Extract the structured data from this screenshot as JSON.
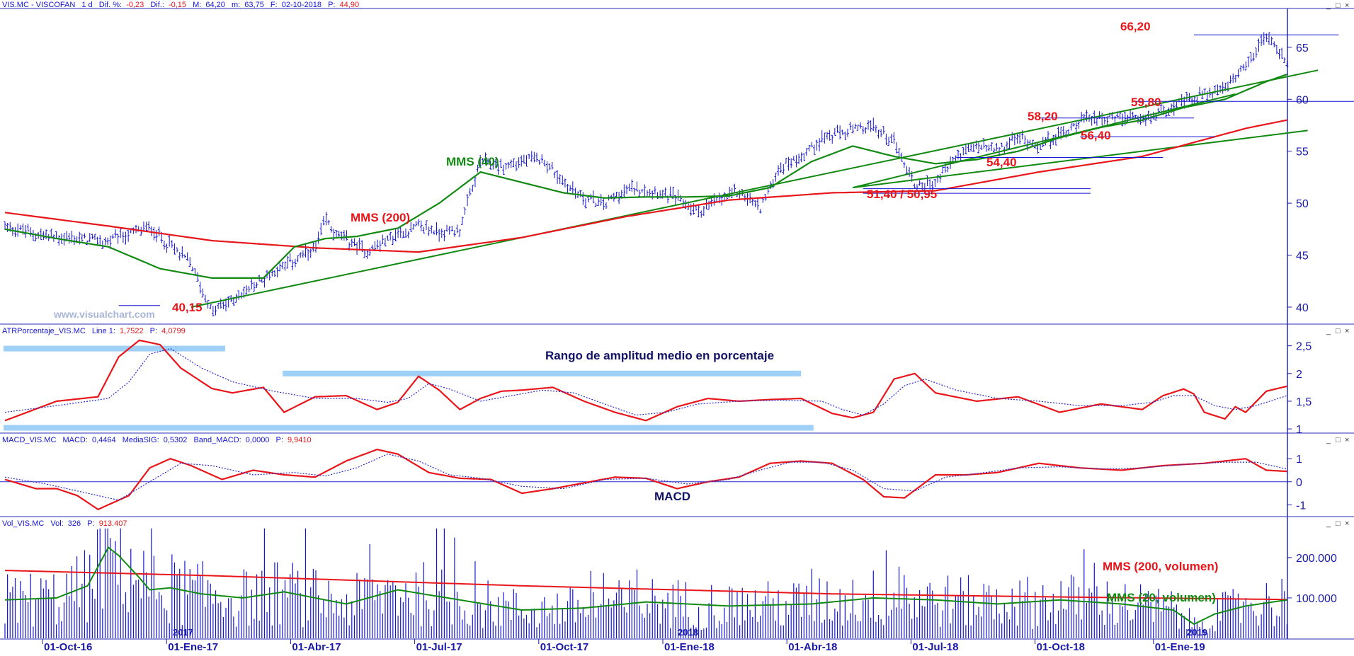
{
  "chart_data": [
    {
      "type": "ohlc",
      "panel": "price",
      "header": {
        "symbol": "VIS.MC - VISCOFAN",
        "period": "1 d",
        "dif_pct_label": "Dif. %:",
        "dif_pct": "-0,23",
        "dif_label": "Dif.:",
        "dif": "-0,15",
        "max_label": "M:",
        "max": "64,20",
        "min_label": "m:",
        "min": "63,75",
        "date_label": "F:",
        "date": "02-10-2018",
        "p_label": "P:",
        "p": "44,90"
      },
      "ylim": [
        38.5,
        68.6
      ],
      "y_ticks": [
        "40",
        "45",
        "50",
        "55",
        "60",
        "65"
      ],
      "y_tick_values": [
        40,
        45,
        50,
        55,
        60,
        65
      ],
      "price_series": {
        "name": "VIS.MC",
        "color": "#1515d4",
        "anchors_t": [
          0,
          4,
          10,
          14,
          18,
          20,
          22,
          24,
          26,
          28,
          30,
          31,
          32,
          35,
          38,
          40,
          42,
          44,
          46,
          48,
          50,
          52,
          54,
          56,
          58,
          59,
          61,
          63,
          65,
          67,
          69,
          71,
          73,
          75,
          77,
          79,
          81,
          84,
          86,
          88,
          90,
          92,
          94,
          96,
          98,
          100,
          102,
          104,
          106,
          108,
          110,
          112,
          114,
          116,
          118,
          120,
          122,
          124
        ],
        "anchors_v": [
          47.8,
          46.8,
          46.3,
          47.7,
          44.2,
          39.5,
          40.7,
          42.0,
          43.5,
          44.5,
          45.5,
          48.5,
          47.0,
          45.4,
          47.0,
          47.8,
          47.2,
          47.5,
          54.0,
          53.5,
          54.0,
          54.3,
          52.0,
          50.5,
          49.9,
          50.8,
          51.5,
          51.2,
          50.5,
          49.2,
          50.3,
          51.2,
          49.5,
          53.5,
          54.5,
          56.2,
          56.8,
          57.3,
          56.0,
          51.7,
          52.0,
          54.5,
          55.5,
          55.0,
          56.3,
          55.6,
          56.5,
          58.0,
          58.3,
          58.2,
          57.9,
          59.0,
          59.7,
          60.5,
          61.0,
          63.0,
          66.2,
          63.5
        ],
        "bar_count": 500
      },
      "moving_averages": [
        {
          "name": "MMS (200)",
          "color": "#e8161b",
          "t": [
            0,
            10,
            20,
            30,
            40,
            50,
            60,
            70,
            80,
            90,
            100,
            110,
            120,
            124
          ],
          "v": [
            49.1,
            47.8,
            46.4,
            45.7,
            45.3,
            46.7,
            48.7,
            50.3,
            51.0,
            51.2,
            53.0,
            54.5,
            57.2,
            58.0
          ]
        },
        {
          "name": "MMS (40)",
          "color": "#128a12",
          "t": [
            0,
            5,
            10,
            15,
            20,
            25,
            28,
            31,
            34,
            38,
            42,
            46,
            50,
            54,
            58,
            62,
            66,
            70,
            74,
            78,
            82,
            86,
            90,
            94,
            98,
            102,
            106,
            110,
            114,
            118,
            122,
            124
          ],
          "v": [
            47.5,
            46.6,
            45.8,
            43.7,
            42.8,
            42.8,
            45.8,
            46.6,
            46.8,
            47.6,
            50.0,
            53.0,
            52.0,
            51.0,
            50.5,
            50.6,
            50.6,
            50.7,
            51.5,
            54.0,
            55.5,
            54.5,
            53.8,
            54.2,
            55.0,
            56.3,
            57.3,
            58.0,
            59.2,
            60.0,
            61.7,
            62.4
          ]
        }
      ],
      "trendlines_green": [
        {
          "t": [
            18,
            127
          ],
          "v": [
            40.0,
            62.8
          ]
        },
        {
          "t": [
            82,
            126
          ],
          "v": [
            51.5,
            57.0
          ]
        },
        {
          "t": [
            82,
            119
          ],
          "v": [
            51.5,
            60.5
          ]
        }
      ],
      "level_lines": [
        {
          "t": [
            11,
            15
          ],
          "v": 40.15
        },
        {
          "t": [
            115,
            129
          ],
          "v": 66.2
        },
        {
          "t": [
            109,
            136
          ],
          "v": 59.8
        },
        {
          "t": [
            100,
            115
          ],
          "v": 58.2
        },
        {
          "t": [
            104,
            117
          ],
          "v": 56.4
        },
        {
          "t": [
            92,
            112
          ],
          "v": 54.4
        },
        {
          "t": [
            83,
            105
          ],
          "v": 51.4
        },
        {
          "t": [
            83,
            105
          ],
          "v": 50.95
        }
      ],
      "annotations": [
        {
          "text": "MMS (40)",
          "color": "green"
        },
        {
          "text": "MMS (200)",
          "color": "red"
        },
        {
          "text": "66,20",
          "color": "red"
        },
        {
          "text": "59,80",
          "color": "red"
        },
        {
          "text": "58,20",
          "color": "red"
        },
        {
          "text": "56,40",
          "color": "red"
        },
        {
          "text": "54,40",
          "color": "red"
        },
        {
          "text": "51,40 / 50,95",
          "color": "red"
        },
        {
          "text": "40,15",
          "color": "red"
        }
      ],
      "watermark": "www.visualchart.com"
    },
    {
      "type": "line",
      "panel": "atr",
      "header": {
        "name": "ATRPorcentaje_VIS.MC",
        "line_label": "Line 1:",
        "line_value": "1,7522",
        "p_label": "P:",
        "p": "4,0799"
      },
      "ylim": [
        0.95,
        2.7
      ],
      "y_ticks": [
        "1",
        "1,5",
        "2",
        "2,5"
      ],
      "y_tick_values": [
        1.0,
        1.5,
        2.0,
        2.5
      ],
      "title": "Rango de amplitud medio en porcentaje",
      "series": [
        {
          "name": "Line 1",
          "color": "#e8161b",
          "t": [
            0,
            5,
            9,
            11,
            13,
            15,
            17,
            20,
            22,
            25,
            27,
            30,
            33,
            36,
            38,
            40,
            42,
            44,
            46,
            48,
            50,
            53,
            56,
            59,
            62,
            65,
            68,
            71,
            74,
            77,
            80,
            82,
            84,
            86,
            88,
            90,
            94,
            98,
            102,
            106,
            110,
            112,
            114,
            115,
            116,
            118,
            119,
            120,
            122,
            124
          ],
          "v": [
            1.15,
            1.5,
            1.58,
            2.3,
            2.6,
            2.52,
            2.1,
            1.73,
            1.65,
            1.75,
            1.3,
            1.58,
            1.6,
            1.35,
            1.48,
            1.95,
            1.7,
            1.35,
            1.55,
            1.68,
            1.7,
            1.75,
            1.5,
            1.3,
            1.15,
            1.4,
            1.55,
            1.5,
            1.53,
            1.55,
            1.28,
            1.2,
            1.3,
            1.9,
            2.0,
            1.65,
            1.5,
            1.58,
            1.3,
            1.45,
            1.35,
            1.6,
            1.72,
            1.63,
            1.3,
            1.18,
            1.4,
            1.3,
            1.68,
            1.77
          ]
        },
        {
          "name": "Signal",
          "color": "#2a2ad0",
          "style": "dotted",
          "t": [
            0,
            5,
            10,
            12,
            14,
            16,
            19,
            22,
            26,
            30,
            34,
            37,
            39,
            41,
            43,
            46,
            49,
            52,
            55,
            58,
            61,
            64,
            67,
            71,
            75,
            79,
            81,
            83,
            85,
            87,
            89,
            92,
            96,
            100,
            104,
            108,
            111,
            113,
            115,
            117,
            119,
            121,
            124
          ],
          "v": [
            1.3,
            1.42,
            1.55,
            1.85,
            2.35,
            2.45,
            2.1,
            1.85,
            1.68,
            1.55,
            1.55,
            1.48,
            1.55,
            1.82,
            1.72,
            1.5,
            1.6,
            1.7,
            1.65,
            1.45,
            1.25,
            1.3,
            1.45,
            1.5,
            1.52,
            1.5,
            1.35,
            1.25,
            1.45,
            1.78,
            1.9,
            1.7,
            1.55,
            1.5,
            1.42,
            1.42,
            1.48,
            1.6,
            1.6,
            1.42,
            1.35,
            1.42,
            1.6
          ]
        }
      ],
      "highlight_bars_color": "#9fd0f7"
    },
    {
      "type": "line",
      "panel": "macd",
      "header": {
        "name": "MACD_VIS.MC",
        "macd_label": "MACD:",
        "macd": "0,4464",
        "sig_label": "MediaSIG:",
        "sig": "0,5302",
        "band_label": "Band_MACD:",
        "band": "0,0000",
        "p_label": "P:",
        "p": "9,9410"
      },
      "ylim": [
        -1.45,
        1.65
      ],
      "y_ticks": [
        "-1",
        "0",
        "1"
      ],
      "y_tick_values": [
        -1,
        0,
        1
      ],
      "label": "MACD",
      "zero_line": 0,
      "series": [
        {
          "name": "MACD",
          "color": "#e8161b",
          "t": [
            0,
            3,
            5,
            7,
            9,
            12,
            14,
            16,
            18,
            21,
            24,
            27,
            30,
            33,
            36,
            38,
            41,
            44,
            47,
            50,
            53,
            56,
            59,
            62,
            65,
            68,
            71,
            74,
            77,
            80,
            83,
            85,
            87,
            90,
            93,
            96,
            100,
            104,
            108,
            112,
            116,
            120,
            122,
            124
          ],
          "v": [
            0.1,
            -0.3,
            -0.3,
            -0.6,
            -1.2,
            -0.6,
            0.6,
            1.0,
            0.7,
            0.1,
            0.5,
            0.3,
            0.2,
            0.9,
            1.4,
            1.2,
            0.4,
            0.15,
            0.1,
            -0.5,
            -0.3,
            -0.05,
            0.2,
            0.15,
            -0.3,
            0.0,
            0.2,
            0.8,
            0.9,
            0.8,
            0.1,
            -0.65,
            -0.7,
            0.3,
            0.3,
            0.4,
            0.8,
            0.6,
            0.5,
            0.7,
            0.8,
            1.0,
            0.5,
            0.45
          ]
        },
        {
          "name": "MediaSIG",
          "color": "#2a2ad0",
          "style": "dotted",
          "t": [
            0,
            4,
            8,
            11,
            14,
            17,
            20,
            24,
            28,
            31,
            34,
            37,
            40,
            43,
            46,
            50,
            54,
            58,
            62,
            66,
            70,
            73,
            76,
            79,
            82,
            85,
            88,
            91,
            94,
            98,
            102,
            106,
            110,
            114,
            118,
            121,
            124
          ],
          "v": [
            0.2,
            -0.1,
            -0.5,
            -0.8,
            0.0,
            0.8,
            0.7,
            0.3,
            0.4,
            0.25,
            0.6,
            1.2,
            0.9,
            0.3,
            0.15,
            -0.2,
            -0.3,
            0.1,
            0.15,
            -0.1,
            0.1,
            0.5,
            0.85,
            0.85,
            0.5,
            -0.3,
            -0.4,
            0.2,
            0.35,
            0.6,
            0.65,
            0.55,
            0.6,
            0.75,
            0.85,
            0.85,
            0.55
          ]
        }
      ]
    },
    {
      "type": "bar",
      "panel": "volume",
      "header": {
        "name": "Vol_VIS.MC",
        "vol_label": "Vol:",
        "vol": "326",
        "p_label": "P:",
        "p": "913.407"
      },
      "ylim": [
        0,
        275000
      ],
      "y_ticks": [
        "100.000",
        "200.000"
      ],
      "y_tick_values": [
        100000,
        200000
      ],
      "bar_color": "#1515d4",
      "bar_count": 500,
      "moving_averages": [
        {
          "name": "MMS (200, volumen)",
          "color": "#e8161b",
          "t": [
            0,
            20,
            50,
            80,
            100,
            124
          ],
          "v": [
            168000,
            155000,
            130000,
            110000,
            103000,
            96000
          ]
        },
        {
          "name": "MMS (20, volumen)",
          "color": "#128a12",
          "t": [
            0,
            5,
            8,
            10,
            11,
            13,
            14,
            16,
            19,
            23,
            27,
            33,
            38,
            44,
            50,
            56,
            62,
            70,
            78,
            84,
            90,
            96,
            102,
            108,
            113,
            115,
            117,
            120,
            124
          ],
          "v": [
            95000,
            100000,
            130000,
            225000,
            205000,
            150000,
            120000,
            125000,
            110000,
            100000,
            115000,
            85000,
            120000,
            95000,
            70000,
            75000,
            90000,
            80000,
            85000,
            100000,
            95000,
            85000,
            95000,
            85000,
            70000,
            35000,
            60000,
            80000,
            95000
          ]
        }
      ],
      "annotations": [
        {
          "text": "MMS (200, volumen)",
          "color": "red"
        },
        {
          "text": "MMS (20, volumen)",
          "color": "green"
        }
      ],
      "year_labels": [
        "2017",
        "2018",
        "2019"
      ]
    }
  ],
  "x_axis": {
    "labels": [
      "01-Oct-16",
      "01-Ene-17",
      "01-Abr-17",
      "01-Jul-17",
      "01-Oct-17",
      "01-Ene-18",
      "01-Abr-18",
      "01-Jul-18",
      "01-Oct-18",
      "01-Ene-19"
    ],
    "label_t": [
      0,
      12,
      24,
      36,
      48,
      60,
      72,
      84,
      96,
      108
    ]
  },
  "window_controls": [
    "_",
    "□",
    "×"
  ],
  "colors": {
    "price": "#1515d4",
    "red": "#e8161b",
    "green": "#128a12",
    "axis": "#1a1aa8",
    "highlight": "#9fd0f7",
    "navy": "#111166"
  }
}
